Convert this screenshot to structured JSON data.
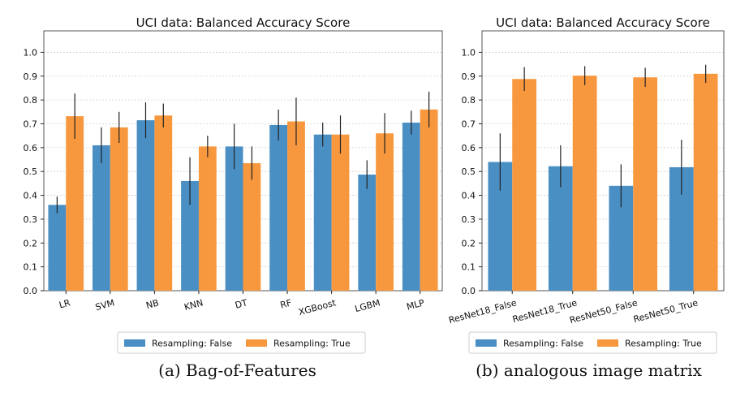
{
  "colors": {
    "false": "#4a8fc4",
    "true": "#f7983f",
    "err": "#222222",
    "grid": "#cfcfcf"
  },
  "chart_data": [
    {
      "type": "bar",
      "title": "UCI data: Balanced Accuracy Score",
      "caption": "(a) Bag-of-Features",
      "categories": [
        "LR",
        "SVM",
        "NB",
        "KNN",
        "DT",
        "RF",
        "XGBoost",
        "LGBM",
        "MLP"
      ],
      "ylim": [
        0,
        1.0
      ],
      "yticks": [
        "0.0",
        "0.1",
        "0.2",
        "0.3",
        "0.4",
        "0.5",
        "0.6",
        "0.7",
        "0.8",
        "0.9",
        "1.0"
      ],
      "grid": "dotted-horizontal",
      "legend_position": "bottom-center",
      "series": [
        {
          "name": "Resampling: False",
          "values": [
            0.36,
            0.61,
            0.715,
            0.46,
            0.605,
            0.695,
            0.655,
            0.487,
            0.705
          ],
          "err": [
            0.035,
            0.075,
            0.075,
            0.1,
            0.095,
            0.065,
            0.05,
            0.06,
            0.05
          ]
        },
        {
          "name": "Resampling: True",
          "values": [
            0.732,
            0.685,
            0.735,
            0.605,
            0.535,
            0.71,
            0.655,
            0.66,
            0.76
          ],
          "err": [
            0.095,
            0.065,
            0.05,
            0.045,
            0.07,
            0.1,
            0.08,
            0.085,
            0.075
          ]
        }
      ]
    },
    {
      "type": "bar",
      "title": "UCI data: Balanced Accuracy Score",
      "caption": "(b) analogous image matrix",
      "categories": [
        "ResNet18_False",
        "ResNet18_True",
        "ResNet50_False",
        "ResNet50_True"
      ],
      "ylim": [
        0,
        1.0
      ],
      "yticks": [
        "0.0",
        "0.1",
        "0.2",
        "0.3",
        "0.4",
        "0.5",
        "0.6",
        "0.7",
        "0.8",
        "0.9",
        "1.0"
      ],
      "grid": "dotted-horizontal",
      "legend_position": "bottom-center",
      "series": [
        {
          "name": "Resampling: False",
          "values": [
            0.54,
            0.522,
            0.44,
            0.518
          ],
          "err": [
            0.12,
            0.088,
            0.09,
            0.115
          ]
        },
        {
          "name": "Resampling: True",
          "values": [
            0.888,
            0.902,
            0.895,
            0.91
          ],
          "err": [
            0.05,
            0.04,
            0.04,
            0.038
          ]
        }
      ]
    }
  ]
}
